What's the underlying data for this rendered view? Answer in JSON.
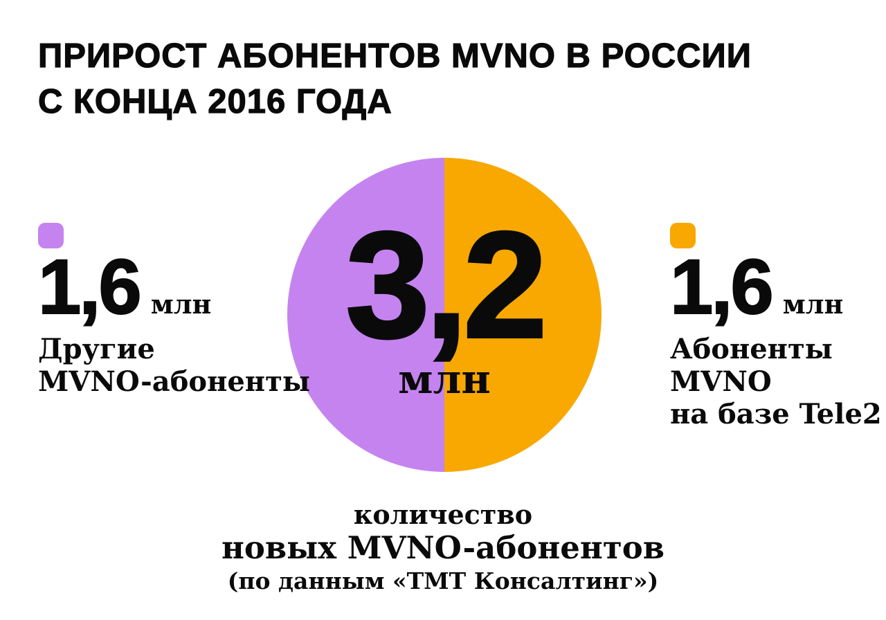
{
  "colors": {
    "purple": "#c583f0",
    "orange": "#f8a800",
    "text": "#0a0a0a",
    "background": "#ffffff"
  },
  "header": {
    "title_line1": "ПРИРОСТ АБОНЕНТОВ MVNO В РОССИИ",
    "title_line2": "С КОНЦА 2016 ГОДА"
  },
  "pie": {
    "value": "3,2",
    "unit": "млн"
  },
  "legend_left": {
    "value": "1,6",
    "unit": "млн",
    "lines": [
      "Другие",
      "MVNO-абоненты"
    ]
  },
  "legend_right": {
    "value": "1,6",
    "unit": "млн",
    "lines": [
      "Абоненты",
      "MVNO",
      "на базе Tele2"
    ]
  },
  "caption": {
    "line1": "количество",
    "line2": "новых MVNO-абонентов",
    "line3": "(по данным «ТМТ Консалтинг»)"
  },
  "chart_data": {
    "type": "pie",
    "title": "Прирост абонентов MVNO в России с конца 2016 года",
    "categories": [
      "Другие MVNO-абоненты",
      "Абоненты MVNO на базе Tele2"
    ],
    "values": [
      1.6,
      1.6
    ],
    "unit": "млн",
    "total": 3.2,
    "total_label": "3,2 млн",
    "slice_colors": [
      "#c583f0",
      "#f8a800"
    ],
    "legend_position": "left-and-right",
    "caption": "количество новых MVNO-абонентов",
    "source": "(по данным «ТМТ Консалтинг»)"
  }
}
